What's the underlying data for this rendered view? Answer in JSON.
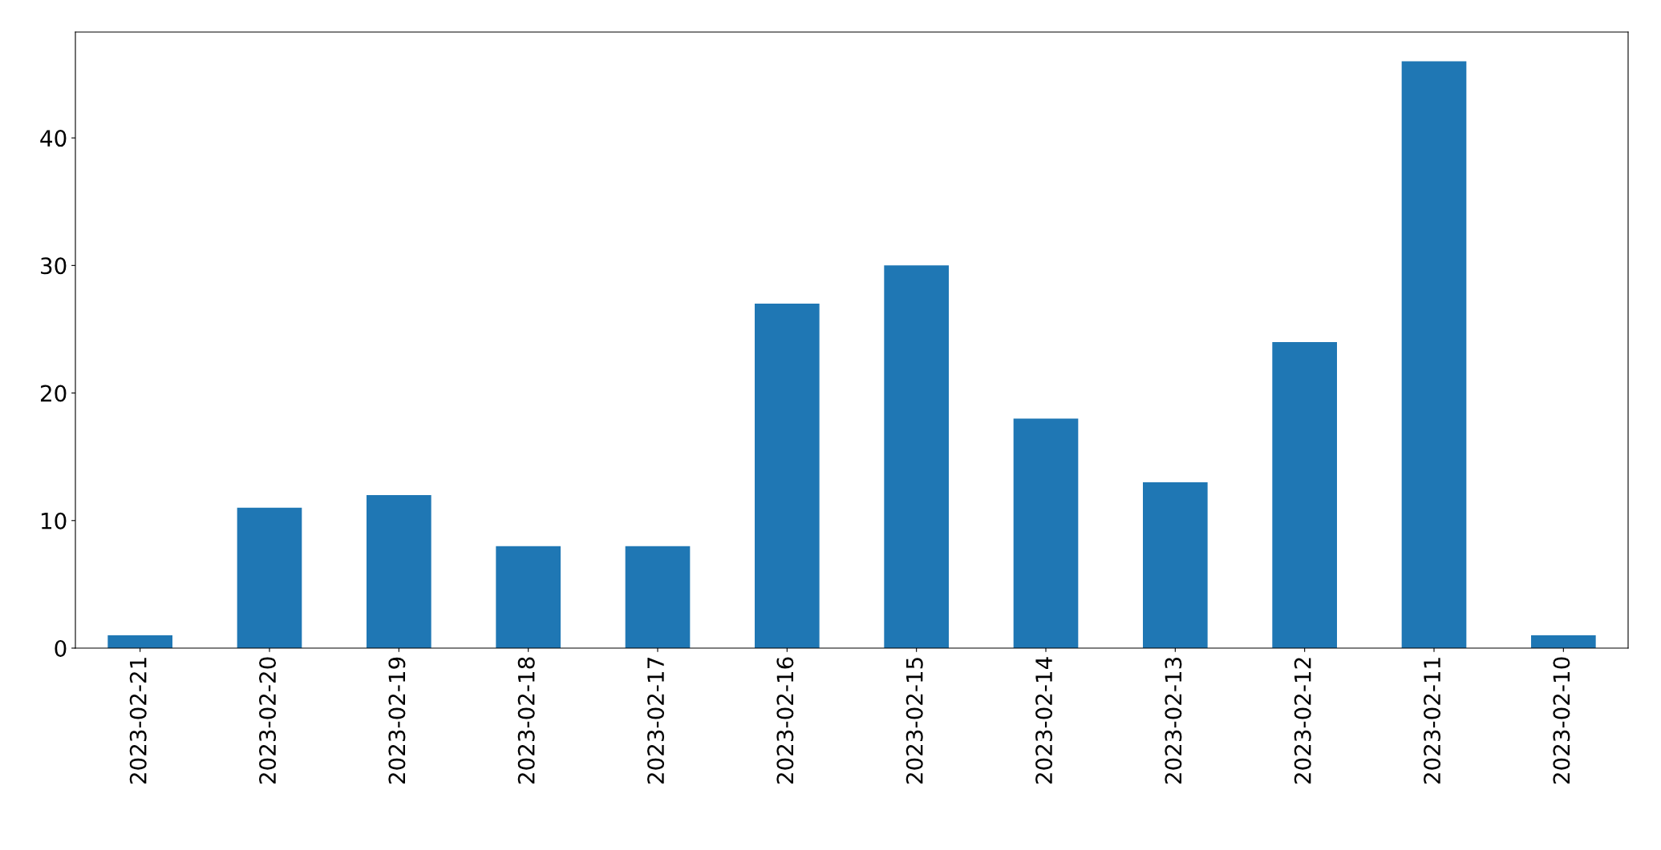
{
  "chart_data": {
    "type": "bar",
    "categories": [
      "2023-02-21",
      "2023-02-20",
      "2023-02-19",
      "2023-02-18",
      "2023-02-17",
      "2023-02-16",
      "2023-02-15",
      "2023-02-14",
      "2023-02-13",
      "2023-02-12",
      "2023-02-11",
      "2023-02-10"
    ],
    "values": [
      1,
      11,
      12,
      8,
      8,
      27,
      30,
      18,
      13,
      24,
      46,
      1
    ],
    "color": "#1f77b4",
    "ylim": [
      0,
      48.3
    ],
    "yticks": [
      0,
      10,
      20,
      30,
      40
    ],
    "grid": false,
    "legend": false
  }
}
